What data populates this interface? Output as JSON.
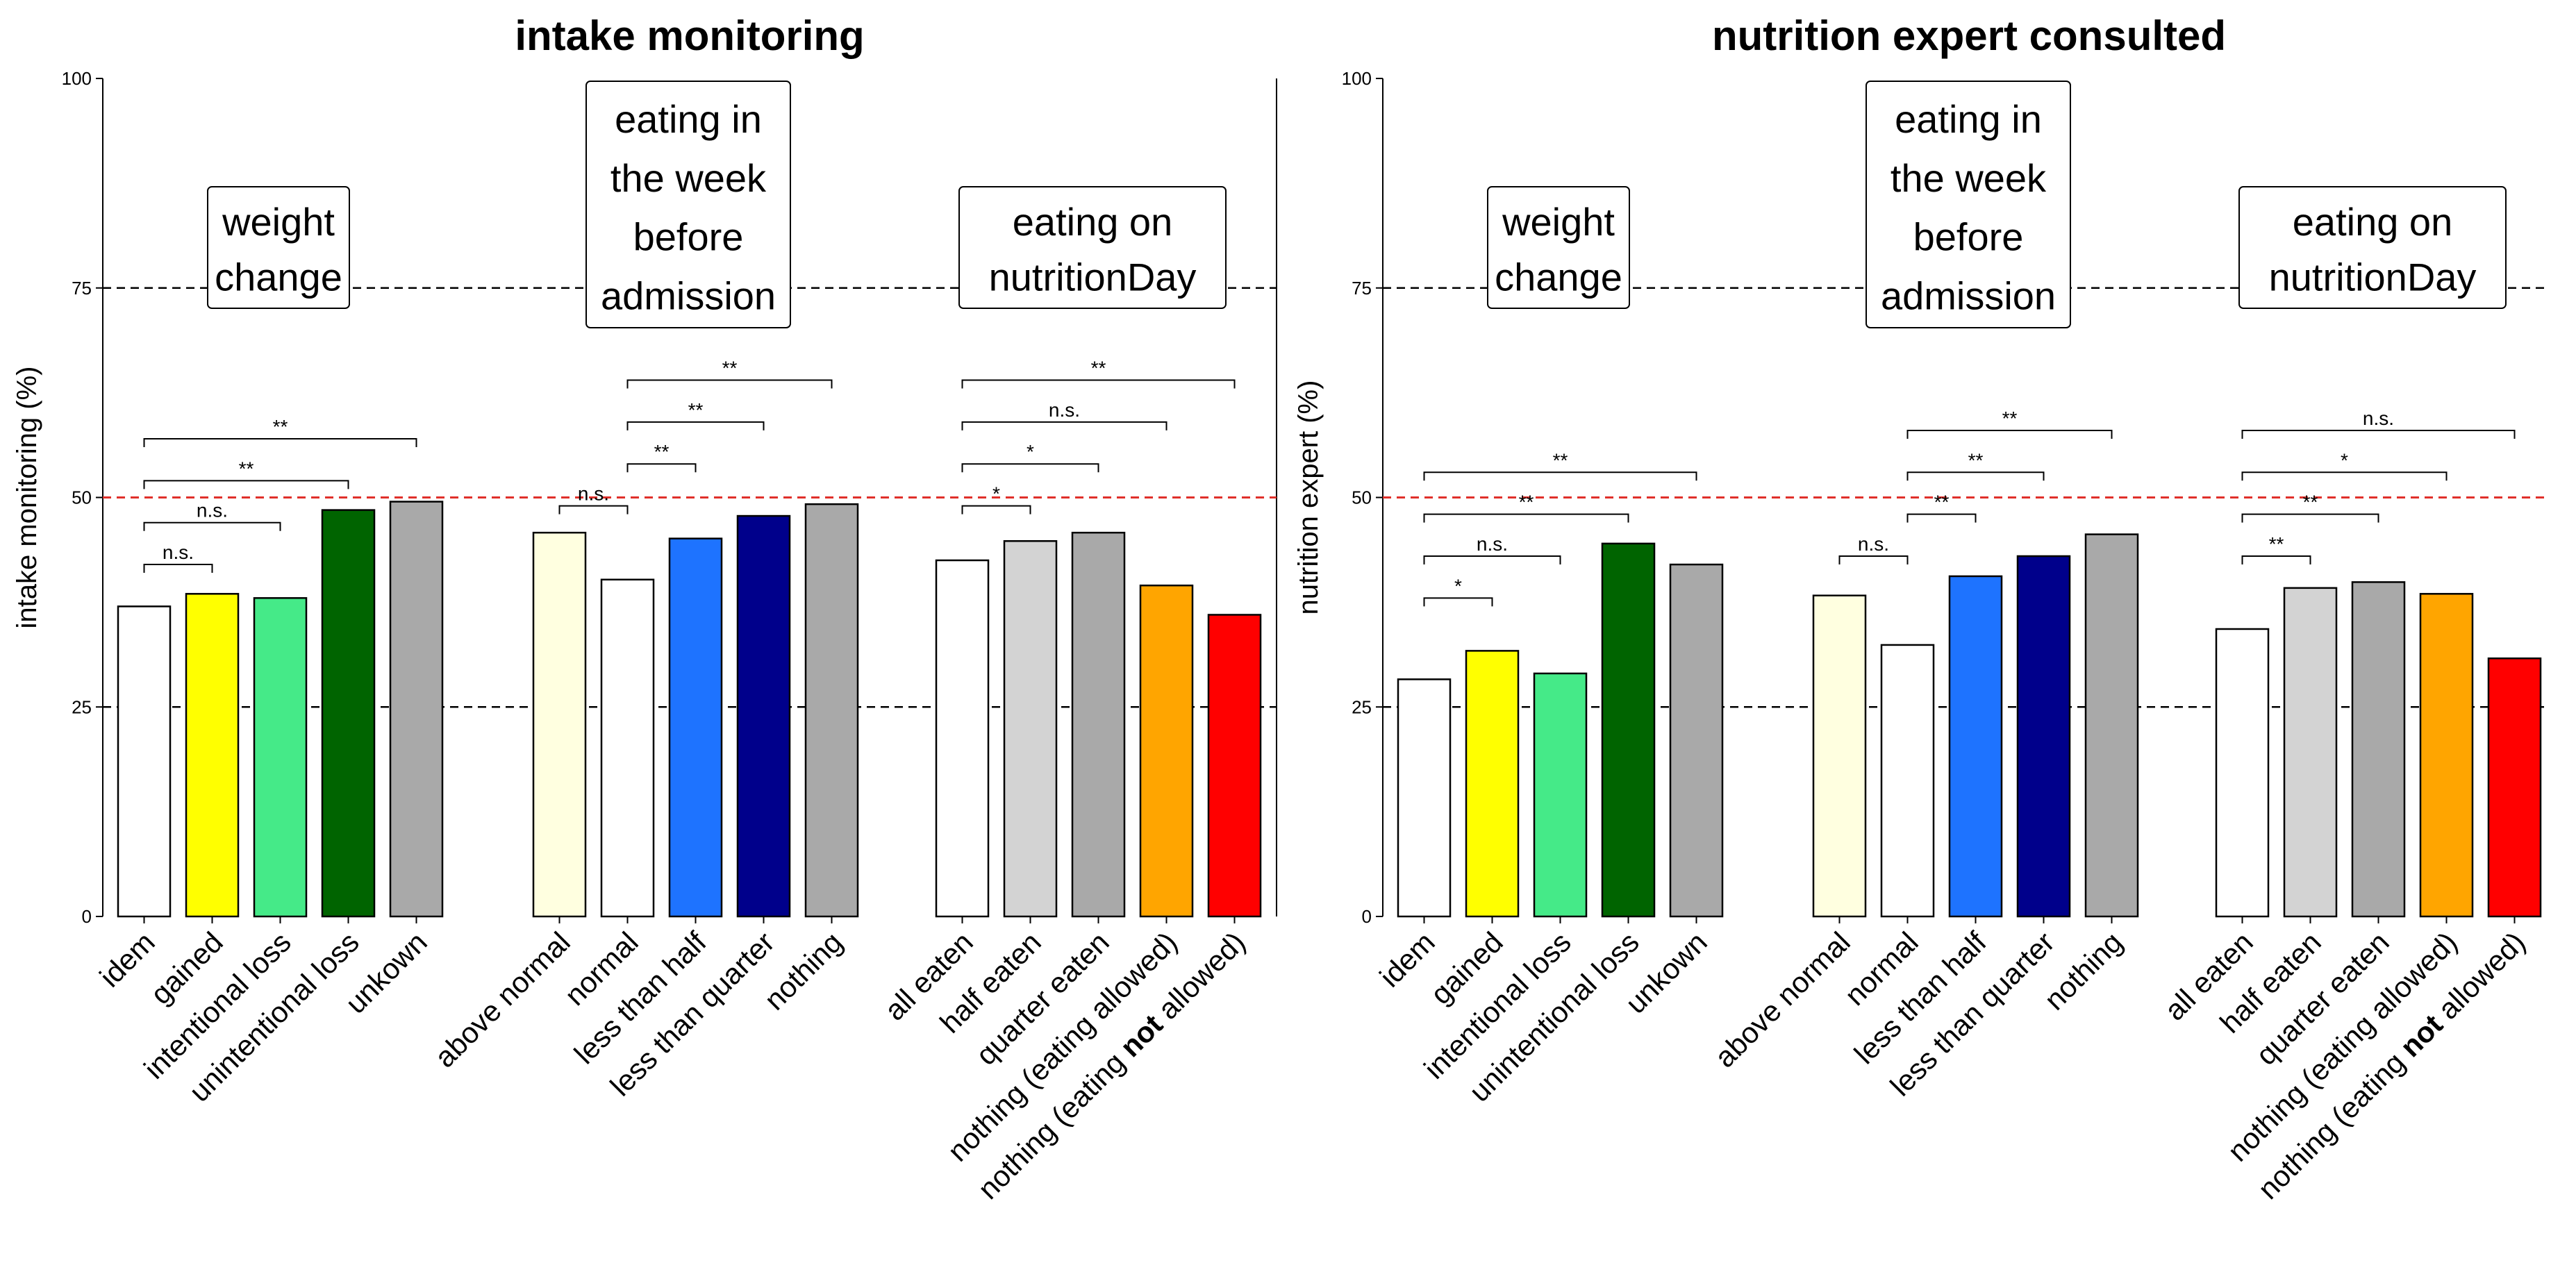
{
  "chart_data": [
    {
      "type": "bar",
      "title": "intake monitoring",
      "ylabel": "intake monitoring (%)",
      "xlabel": "",
      "ylim": [
        0,
        100
      ],
      "yticks": [
        0,
        25,
        50,
        75,
        100
      ],
      "reference_lines": [
        {
          "value": 25,
          "color": "#000000",
          "style": "dashed"
        },
        {
          "value": 50,
          "color": "#e0302a",
          "style": "dashed"
        },
        {
          "value": 75,
          "color": "#000000",
          "style": "dashed"
        }
      ],
      "groups": [
        {
          "label_lines": [
            "weight",
            "change"
          ],
          "categories": [
            "idem",
            "gained",
            "intentional loss",
            "unintentional loss",
            "unkown"
          ],
          "values": [
            37,
            38.5,
            38,
            48.5,
            49.5
          ],
          "colors": [
            "#ffffff",
            "#ffff00",
            "#45ea88",
            "#006400",
            "#a9a9a9"
          ],
          "significance": [
            {
              "from": 0,
              "to": 1,
              "label": "n.s.",
              "y": 42
            },
            {
              "from": 0,
              "to": 2,
              "label": "n.s.",
              "y": 47
            },
            {
              "from": 0,
              "to": 3,
              "label": "**",
              "y": 52
            },
            {
              "from": 0,
              "to": 4,
              "label": "**",
              "y": 57
            }
          ]
        },
        {
          "label_lines": [
            "eating in",
            "the week",
            "before",
            "admission"
          ],
          "categories": [
            "above normal",
            "normal",
            "less than half",
            "less than quarter",
            "nothing"
          ],
          "values": [
            45.8,
            40.2,
            45.1,
            47.8,
            49.2
          ],
          "colors": [
            "#ffffe0",
            "#ffffff",
            "#1e73ff",
            "#00008b",
            "#a9a9a9"
          ],
          "significance": [
            {
              "from": 1,
              "to": 0,
              "label": "n.s.",
              "y": 49
            },
            {
              "from": 1,
              "to": 2,
              "label": "**",
              "y": 54
            },
            {
              "from": 1,
              "to": 3,
              "label": "**",
              "y": 59
            },
            {
              "from": 1,
              "to": 4,
              "label": "**",
              "y": 64
            }
          ]
        },
        {
          "label_lines": [
            "eating on",
            "nutritionDay"
          ],
          "categories": [
            "all eaten",
            "half eaten",
            "quarter eaten",
            "nothing (eating allowed)",
            "nothing (eating not allowed)"
          ],
          "values": [
            42.5,
            44.8,
            45.8,
            39.5,
            36
          ],
          "colors": [
            "#ffffff",
            "#d3d3d3",
            "#a9a9a9",
            "#ffa500",
            "#ff0000"
          ],
          "significance": [
            {
              "from": 0,
              "to": 1,
              "label": "*",
              "y": 49
            },
            {
              "from": 0,
              "to": 2,
              "label": "*",
              "y": 54
            },
            {
              "from": 0,
              "to": 3,
              "label": "n.s.",
              "y": 59
            },
            {
              "from": 0,
              "to": 4,
              "label": "**",
              "y": 64
            }
          ]
        }
      ]
    },
    {
      "type": "bar",
      "title": "nutrition expert consulted",
      "ylabel": "nutrition expert (%)",
      "xlabel": "",
      "ylim": [
        0,
        100
      ],
      "yticks": [
        0,
        25,
        50,
        75,
        100
      ],
      "reference_lines": [
        {
          "value": 25,
          "color": "#000000",
          "style": "dashed"
        },
        {
          "value": 50,
          "color": "#e0302a",
          "style": "dashed"
        },
        {
          "value": 75,
          "color": "#000000",
          "style": "dashed"
        }
      ],
      "groups": [
        {
          "label_lines": [
            "weight",
            "change"
          ],
          "categories": [
            "idem",
            "gained",
            "intentional loss",
            "unintentional loss",
            "unkown"
          ],
          "values": [
            28.3,
            31.7,
            29,
            44.5,
            42
          ],
          "colors": [
            "#ffffff",
            "#ffff00",
            "#45ea88",
            "#006400",
            "#a9a9a9"
          ],
          "significance": [
            {
              "from": 0,
              "to": 1,
              "label": "*",
              "y": 38
            },
            {
              "from": 0,
              "to": 2,
              "label": "n.s.",
              "y": 43
            },
            {
              "from": 0,
              "to": 3,
              "label": "**",
              "y": 48
            },
            {
              "from": 0,
              "to": 4,
              "label": "**",
              "y": 53
            }
          ]
        },
        {
          "label_lines": [
            "eating in",
            "the week",
            "before",
            "admission"
          ],
          "categories": [
            "above normal",
            "normal",
            "less than half",
            "less than quarter",
            "nothing"
          ],
          "values": [
            38.3,
            32.4,
            40.6,
            43,
            45.6
          ],
          "colors": [
            "#ffffe0",
            "#ffffff",
            "#1e73ff",
            "#00008b",
            "#a9a9a9"
          ],
          "significance": [
            {
              "from": 1,
              "to": 0,
              "label": "n.s.",
              "y": 43
            },
            {
              "from": 1,
              "to": 2,
              "label": "**",
              "y": 48
            },
            {
              "from": 1,
              "to": 3,
              "label": "**",
              "y": 53
            },
            {
              "from": 1,
              "to": 4,
              "label": "**",
              "y": 58
            }
          ]
        },
        {
          "label_lines": [
            "eating on",
            "nutritionDay"
          ],
          "categories": [
            "all eaten",
            "half eaten",
            "quarter eaten",
            "nothing (eating allowed)",
            "nothing (eating not allowed)"
          ],
          "values": [
            34.3,
            39.2,
            39.9,
            38.5,
            30.8
          ],
          "colors": [
            "#ffffff",
            "#d3d3d3",
            "#a9a9a9",
            "#ffa500",
            "#ff0000"
          ],
          "significance": [
            {
              "from": 0,
              "to": 1,
              "label": "**",
              "y": 43
            },
            {
              "from": 0,
              "to": 2,
              "label": "**",
              "y": 48
            },
            {
              "from": 0,
              "to": 3,
              "label": "*",
              "y": 53
            },
            {
              "from": 0,
              "to": 4,
              "label": "n.s.",
              "y": 58
            }
          ]
        }
      ]
    }
  ]
}
